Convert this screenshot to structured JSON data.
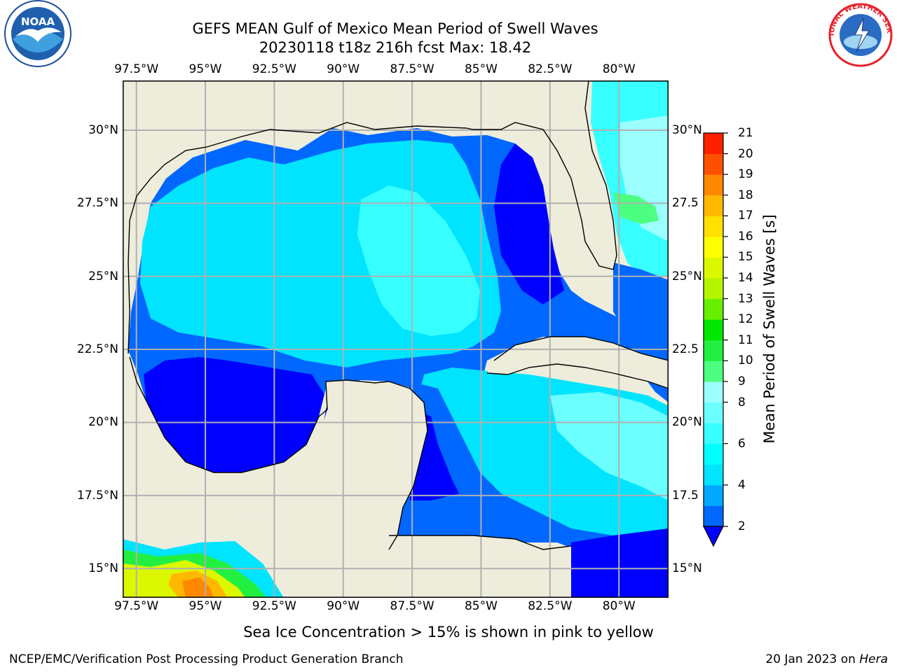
{
  "title": {
    "line1": "GEFS MEAN Gulf of Mexico Mean Period of Swell Waves",
    "line2": "20230118 t18z 216h fcst   Max: 18.42"
  },
  "logos": {
    "left": {
      "name": "noaa-logo",
      "text": "NOAA",
      "colors": {
        "outer": "#1f5fae",
        "inner": "#3fa0e0",
        "bird": "#ffffff"
      }
    },
    "right": {
      "name": "nws-logo",
      "ring_text": "NATIONAL WEATHER SERVICE",
      "colors": {
        "ring": "#e8202a",
        "inner": "#2a6bc4"
      }
    }
  },
  "map": {
    "extent": {
      "lon_min": -98.0,
      "lon_max": -78.2,
      "lat_min": 14.0,
      "lat_max": 31.7
    },
    "colors": {
      "land": "#eeeddc",
      "coast": "#000000",
      "grid": "#b0b0b0",
      "frame": "#000000"
    },
    "lon_ticks": [
      {
        "lon": -97.5,
        "label": "97.5°W"
      },
      {
        "lon": -95.0,
        "label": "95°W"
      },
      {
        "lon": -92.5,
        "label": "92.5°W"
      },
      {
        "lon": -90.0,
        "label": "90°W"
      },
      {
        "lon": -87.5,
        "label": "87.5°W"
      },
      {
        "lon": -85.0,
        "label": "85°W"
      },
      {
        "lon": -82.5,
        "label": "82.5°W"
      },
      {
        "lon": -80.0,
        "label": "80°W"
      }
    ],
    "lat_ticks_left": [
      {
        "lat": 30.0,
        "label": "30°N"
      },
      {
        "lat": 27.5,
        "label": "27.5°N"
      },
      {
        "lat": 25.0,
        "label": "25°N"
      },
      {
        "lat": 22.5,
        "label": "22.5°N"
      },
      {
        "lat": 20.0,
        "label": "20°N"
      },
      {
        "lat": 17.5,
        "label": "17.5°N"
      },
      {
        "lat": 15.0,
        "label": "15°N"
      }
    ],
    "lat_ticks_right": [
      {
        "lat": 30.0,
        "label": "30°N"
      },
      {
        "lat": 27.5,
        "label": "27.5"
      },
      {
        "lat": 25.0,
        "label": "25°N"
      },
      {
        "lat": 22.5,
        "label": "22.5"
      },
      {
        "lat": 20.0,
        "label": "20°N"
      },
      {
        "lat": 17.5,
        "label": "17.5"
      },
      {
        "lat": 15.0,
        "label": "15°N"
      }
    ]
  },
  "colorbar": {
    "label": "Mean Period of Swell Waves [s]",
    "extend": "min",
    "under_color": "#0000ff",
    "levels": [
      2,
      3,
      4,
      5,
      6,
      7,
      8,
      9,
      10,
      11,
      12,
      13,
      14,
      15,
      16,
      17,
      18,
      19,
      20,
      21
    ],
    "tick_values": [
      2,
      4,
      6,
      8,
      9,
      10,
      11,
      12,
      13,
      14,
      15,
      16,
      17,
      18,
      19,
      20,
      21
    ],
    "colors": [
      "#0067ff",
      "#00a8ff",
      "#00e4ff",
      "#00ffff",
      "#38ffff",
      "#6cffff",
      "#9cffff",
      "#4cff80",
      "#22f040",
      "#00e800",
      "#66f000",
      "#b4f500",
      "#dcf800",
      "#ffff00",
      "#ffe000",
      "#ffb800",
      "#ff8800",
      "#ff5000",
      "#ff2000"
    ]
  },
  "subtitle": "Sea Ice Concentration > 15% is shown in pink to yellow",
  "footer": {
    "left": "NCEP/EMC/Verification Post Processing Product Generation Branch",
    "right_date": "20 Jan 2023 on ",
    "right_machine": "Hera"
  }
}
